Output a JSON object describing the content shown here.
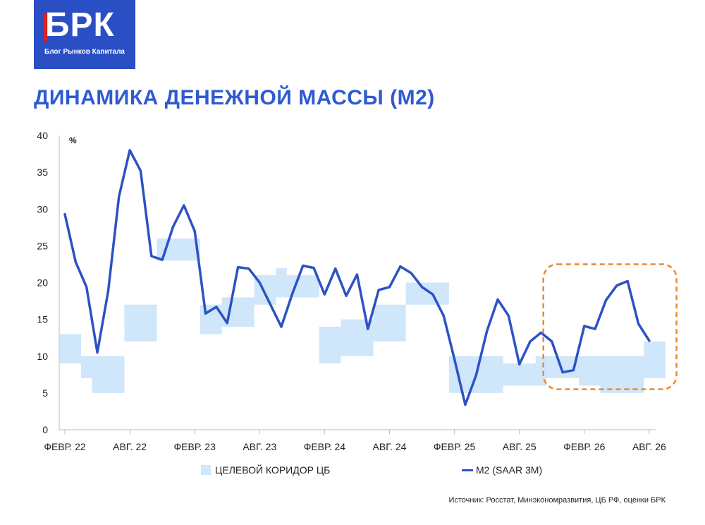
{
  "logo": {
    "mark": "БРК",
    "tagline": "Блог Рынков Капитала"
  },
  "title": "ДИНАМИКА ДЕНЕЖНОЙ МАССЫ (М2)",
  "source": "Источник: Росстат, Минэкономразвития, ЦБ РФ, оценки БРК",
  "colors": {
    "band": "#cfe6fb",
    "line": "#2d52c4",
    "highlight": "#e8892f",
    "title": "#2f5ad0"
  },
  "chart_data": {
    "type": "line",
    "ylabel": "%",
    "ylim": [
      0,
      40
    ],
    "yticks": [
      0,
      5,
      10,
      15,
      20,
      25,
      30,
      35,
      40
    ],
    "x_tick_labels": [
      "ФЕВР. 22",
      "АВГ. 22",
      "ФЕВР. 23",
      "АВГ. 23",
      "ФЕВР. 24",
      "АВГ. 24",
      "ФЕВР. 25",
      "АВГ. 25",
      "ФЕВР. 26",
      "АВГ. 26"
    ],
    "x_tick_index": [
      0,
      6,
      12,
      18,
      24,
      30,
      36,
      42,
      48,
      54
    ],
    "legend": {
      "band": "ЦЕЛЕВОЙ КОРИДОР ЦБ",
      "line": "М2 (SAAR 3М)"
    },
    "series": [
      {
        "name": "М2 (SAAR 3М)",
        "values": [
          29.3,
          22.8,
          19.4,
          10.5,
          18.8,
          31.7,
          38,
          35.2,
          23.6,
          23.1,
          27.6,
          30.5,
          27,
          15.8,
          16.7,
          14.5,
          22.1,
          21.9,
          20,
          17,
          14,
          18.4,
          22.3,
          22,
          18.4,
          21.9,
          18.2,
          21.1,
          13.7,
          19,
          19.4,
          22.2,
          21.3,
          19.4,
          18.4,
          15.5,
          9.6,
          3.4,
          7.4,
          13.4,
          17.7,
          15.5,
          8.9,
          12,
          13.2,
          12,
          7.8,
          8.1,
          14.1,
          13.7,
          17.6,
          19.6,
          20.2,
          14.4,
          12.1
        ]
      }
    ],
    "band": {
      "name": "ЦЕЛЕВОЙ КОРИДОР ЦБ",
      "lower": [
        9,
        9,
        7,
        5,
        5,
        5,
        12,
        12,
        12,
        23,
        23,
        23,
        23,
        13,
        13,
        14,
        14,
        14,
        17,
        17,
        18,
        18,
        18,
        18,
        9,
        9,
        10,
        10,
        10,
        12,
        12,
        12,
        17,
        17,
        17,
        17,
        5,
        5,
        5,
        5,
        5,
        6,
        6,
        6,
        6,
        7,
        7,
        7,
        6,
        6,
        5,
        5,
        5,
        5,
        7,
        7
      ],
      "upper": [
        13,
        13,
        10,
        10,
        10,
        10,
        17,
        17,
        17,
        26,
        26,
        26,
        26,
        17,
        17,
        18,
        18,
        18,
        21,
        21,
        22,
        21,
        21,
        21,
        14,
        14,
        15,
        15,
        15,
        17,
        17,
        17,
        20,
        20,
        20,
        20,
        10,
        10,
        10,
        10,
        10,
        9,
        9,
        9,
        10,
        10,
        10,
        10,
        10,
        10,
        10,
        10,
        10,
        10,
        12,
        12
      ]
    },
    "highlight_box": {
      "x_from": 45,
      "x_to": 56,
      "y_from": 5.5,
      "y_to": 22.5
    }
  }
}
